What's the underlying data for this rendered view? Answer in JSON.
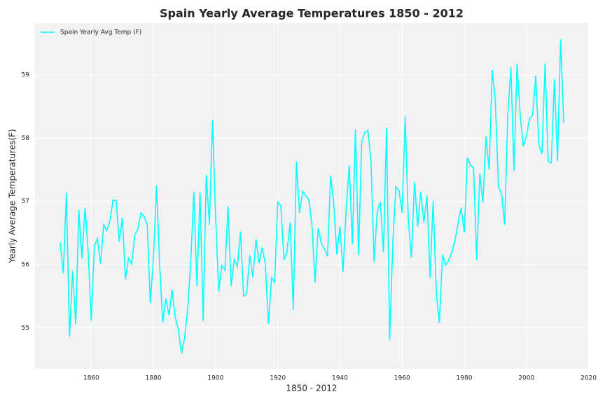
{
  "chart_data": {
    "type": "line",
    "title": "Spain Yearly Average Temperatures 1850 - 2012",
    "x_label": "1850 - 2012",
    "y_label": "Yearly Average Temperatures(F)",
    "x": [
      1850,
      1851,
      1852,
      1853,
      1854,
      1855,
      1856,
      1857,
      1858,
      1859,
      1860,
      1861,
      1862,
      1863,
      1864,
      1865,
      1866,
      1867,
      1868,
      1869,
      1870,
      1871,
      1872,
      1873,
      1874,
      1875,
      1876,
      1877,
      1878,
      1879,
      1880,
      1881,
      1882,
      1883,
      1884,
      1885,
      1886,
      1887,
      1888,
      1889,
      1890,
      1891,
      1892,
      1893,
      1894,
      1895,
      1896,
      1897,
      1898,
      1899,
      1900,
      1901,
      1902,
      1903,
      1904,
      1905,
      1906,
      1907,
      1908,
      1909,
      1910,
      1911,
      1912,
      1913,
      1914,
      1915,
      1916,
      1917,
      1918,
      1919,
      1920,
      1921,
      1922,
      1923,
      1924,
      1925,
      1926,
      1927,
      1928,
      1929,
      1930,
      1931,
      1932,
      1933,
      1934,
      1935,
      1936,
      1937,
      1938,
      1939,
      1940,
      1941,
      1942,
      1943,
      1944,
      1945,
      1946,
      1947,
      1948,
      1949,
      1950,
      1951,
      1952,
      1953,
      1954,
      1955,
      1956,
      1957,
      1958,
      1959,
      1960,
      1961,
      1962,
      1963,
      1964,
      1965,
      1966,
      1967,
      1968,
      1969,
      1970,
      1971,
      1972,
      1973,
      1974,
      1975,
      1976,
      1977,
      1978,
      1979,
      1980,
      1981,
      1982,
      1983,
      1984,
      1985,
      1986,
      1987,
      1988,
      1989,
      1990,
      1991,
      1992,
      1993,
      1994,
      1995,
      1996,
      1997,
      1998,
      1999,
      2000,
      2001,
      2002,
      2003,
      2004,
      2005,
      2006,
      2007,
      2008,
      2009,
      2010,
      2011,
      2012
    ],
    "series": [
      {
        "name": "Spain Yearly Avg Temp (F)",
        "color": "#00ffff",
        "values": [
          56.35,
          55.86,
          57.13,
          54.86,
          55.9,
          55.06,
          56.87,
          56.1,
          56.9,
          56.2,
          55.11,
          56.3,
          56.41,
          56.01,
          56.63,
          56.54,
          56.69,
          57.02,
          57.01,
          56.36,
          56.74,
          55.77,
          56.1,
          56.01,
          56.47,
          56.56,
          56.82,
          56.76,
          56.63,
          55.39,
          56.1,
          57.25,
          55.99,
          55.08,
          55.46,
          55.2,
          55.6,
          55.17,
          54.98,
          54.6,
          54.83,
          55.28,
          56.05,
          57.15,
          55.66,
          57.14,
          55.11,
          57.42,
          56.63,
          58.29,
          56.76,
          55.57,
          55.99,
          55.91,
          56.92,
          55.66,
          56.08,
          55.97,
          56.52,
          55.5,
          55.54,
          56.15,
          55.8,
          56.4,
          56.02,
          56.27,
          56.01,
          55.06,
          55.79,
          55.72,
          56.99,
          56.93,
          56.07,
          56.21,
          56.67,
          55.28,
          57.63,
          56.82,
          57.16,
          57.09,
          57.03,
          56.63,
          55.72,
          56.58,
          56.34,
          56.25,
          56.13,
          57.41,
          56.98,
          56.16,
          56.6,
          55.88,
          56.87,
          57.57,
          56.32,
          58.14,
          56.15,
          57.94,
          58.09,
          58.12,
          57.64,
          56.04,
          56.84,
          56.99,
          56.19,
          58.16,
          54.81,
          56.32,
          57.23,
          57.17,
          56.82,
          58.34,
          56.71,
          56.11,
          57.31,
          56.6,
          57.15,
          56.67,
          57.09,
          55.79,
          57.01,
          55.55,
          55.08,
          56.16,
          55.99,
          56.07,
          56.19,
          56.38,
          56.65,
          56.9,
          56.51,
          57.69,
          57.57,
          57.53,
          56.07,
          57.44,
          56.98,
          58.03,
          57.5,
          59.08,
          58.58,
          57.23,
          57.12,
          56.63,
          58.36,
          59.12,
          57.48,
          59.18,
          58.36,
          57.87,
          58.03,
          58.31,
          58.36,
          58.99,
          57.9,
          57.75,
          59.18,
          57.63,
          57.61,
          58.93,
          57.64,
          59.56,
          58.24
        ]
      }
    ],
    "xlim": [
      1841.9,
      2020.1
    ],
    "xticks": [
      1860,
      1880,
      1900,
      1920,
      1940,
      1960,
      1980,
      2000,
      2020
    ],
    "ylim": [
      54.35,
      59.82
    ],
    "yticks": [
      55,
      56,
      57,
      58,
      59
    ],
    "grid": true,
    "legend": "upper left"
  }
}
